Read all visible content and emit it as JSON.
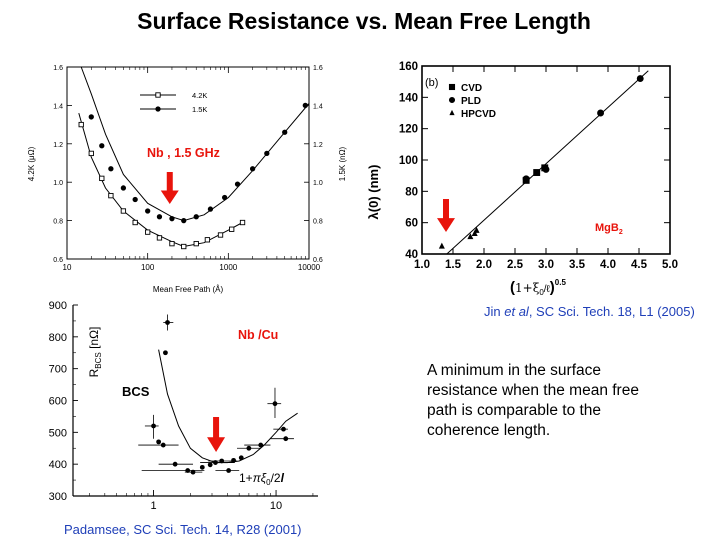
{
  "slide": {
    "title": "Surface Resistance vs. Mean Free Length",
    "summary": "A minimum in the surface resistance when the mean free path is comparable to the coherence length.",
    "citation_mgb2": {
      "prefix": "Jin ",
      "italic": "et al",
      "suffix": ", SC Sci. Tech. 18, L1 (2005)"
    },
    "citation_nbcu": "Padamsee, SC Sci. Tech. 14, R28 (2001)",
    "colors": {
      "highlight": "#e8140c",
      "citation": "#1f3fb8"
    }
  },
  "chart_data": [
    {
      "id": "nb-mfp",
      "type": "line",
      "annotation": "Nb , 1.5 GHz",
      "xlabel": "Mean  Free  Path  (Å)",
      "ylabel_left": "4.2K   (μΩ)",
      "ylabel_right": "1.5K   (nΩ)",
      "x_scale": "log",
      "xlim": [
        10,
        10000
      ],
      "ylim": [
        0.6,
        1.6
      ],
      "x_ticks": [
        10,
        100,
        1000,
        10000
      ],
      "x_tick_labels": [
        "10",
        "100",
        "1000",
        "10000"
      ],
      "y_ticks": [
        0.6,
        0.8,
        1.0,
        1.2,
        1.4,
        1.6
      ],
      "y_tick_labels": [
        "0.6",
        "0.8",
        "1.0",
        "1.2",
        "1.4",
        "1.6"
      ],
      "series": [
        {
          "name": "4.2K",
          "marker": "square",
          "x": [
            15,
            20,
            27,
            35,
            50,
            70,
            100,
            140,
            200,
            280,
            400,
            550,
            800,
            1100,
            1500
          ],
          "y": [
            1.3,
            1.15,
            1.02,
            0.93,
            0.85,
            0.79,
            0.74,
            0.71,
            0.68,
            0.665,
            0.68,
            0.7,
            0.725,
            0.755,
            0.79
          ]
        },
        {
          "name": "1.5K",
          "marker": "circle",
          "x": [
            20,
            27,
            35,
            50,
            70,
            100,
            140,
            200,
            280,
            400,
            600,
            900,
            1300,
            2000,
            3000,
            5000,
            9000
          ],
          "y": [
            1.34,
            1.19,
            1.07,
            0.97,
            0.91,
            0.85,
            0.82,
            0.81,
            0.8,
            0.82,
            0.86,
            0.92,
            0.99,
            1.07,
            1.15,
            1.26,
            1.4
          ]
        }
      ],
      "curve_upper": {
        "x": [
          15,
          20,
          30,
          50,
          100,
          200,
          280,
          500,
          1000,
          2000,
          5000,
          10000
        ],
        "y": [
          1.6,
          1.46,
          1.25,
          1.04,
          0.89,
          0.82,
          0.8,
          0.83,
          0.92,
          1.06,
          1.26,
          1.41
        ]
      },
      "curve_lower": {
        "x": [
          14,
          20,
          30,
          50,
          100,
          200,
          280,
          500,
          1000,
          1500
        ],
        "y": [
          1.36,
          1.13,
          0.97,
          0.85,
          0.75,
          0.69,
          0.665,
          0.685,
          0.75,
          0.79
        ]
      },
      "arrow_x": 250
    },
    {
      "id": "mgb2",
      "type": "scatter",
      "panel_label": "(b)",
      "annotation": {
        "text": "MgB",
        "sub": "2"
      },
      "ylabel": "λ(0) (nm)",
      "xlabel": {
        "open": "(",
        "base": "1+ξ",
        "sub": "0",
        "mid": "/ℓ",
        "close": ")",
        "sup": "0.5"
      },
      "xlim": [
        1.0,
        5.0
      ],
      "ylim": [
        40,
        160
      ],
      "x_ticks": [
        1.0,
        1.5,
        2.0,
        2.5,
        3.0,
        3.5,
        4.0,
        4.5,
        5.0
      ],
      "x_tick_labels": [
        "1.0",
        "1.5",
        "2.0",
        "2.5",
        "3.0",
        "3.5",
        "4.0",
        "4.5",
        "5.0"
      ],
      "y_ticks": [
        40,
        60,
        80,
        100,
        120,
        140,
        160
      ],
      "y_tick_labels": [
        "40",
        "60",
        "80",
        "100",
        "120",
        "140",
        "160"
      ],
      "legend": [
        "CVD",
        "PLD",
        "HPCVD"
      ],
      "series": [
        {
          "name": "CVD",
          "marker": "square",
          "x": [
            2.68,
            2.85,
            2.98
          ],
          "y": [
            87,
            92,
            95
          ]
        },
        {
          "name": "PLD",
          "marker": "circle",
          "x": [
            2.68,
            3.0,
            3.88,
            4.52
          ],
          "y": [
            88,
            94,
            130,
            152
          ]
        },
        {
          "name": "HPCVD",
          "marker": "triangle",
          "x": [
            1.32,
            1.78,
            1.85,
            1.88
          ],
          "y": [
            45,
            51,
            53,
            55
          ]
        }
      ],
      "fit_line": {
        "x": [
          1.4,
          4.65
        ],
        "y": [
          40,
          157
        ]
      },
      "arrow_x": 1.5
    },
    {
      "id": "nbcu",
      "type": "scatter",
      "annotation": "Nb /Cu",
      "curve_label": "BCS",
      "ylabel": {
        "base": "R",
        "sub": "BCS",
        "unit": " [nΩ]"
      },
      "xlabel": {
        "pre": "1+",
        "pi": "π",
        "xi": "ξ",
        "sub": "0",
        "post": "/2",
        "l": "l"
      },
      "x_scale": "log",
      "xlim": [
        0.22,
        22
      ],
      "ylim": [
        300,
        900
      ],
      "x_ticks": [
        1,
        10
      ],
      "x_tick_labels": [
        "1",
        "10"
      ],
      "y_ticks": [
        300,
        400,
        500,
        600,
        700,
        800,
        900
      ],
      "y_tick_labels": [
        "300",
        "400",
        "500",
        "600",
        "700",
        "800",
        "900"
      ],
      "points": [
        {
          "x": 1.3,
          "y": 845,
          "xerr": [
            1.2,
            1.45
          ],
          "yerr": [
            820,
            870
          ]
        },
        {
          "x": 1.25,
          "y": 750
        },
        {
          "x": 1.0,
          "y": 520,
          "xerr": [
            0.85,
            1.1
          ],
          "yerr": [
            480,
            555
          ]
        },
        {
          "x": 1.1,
          "y": 470
        },
        {
          "x": 1.2,
          "y": 460,
          "xerr": [
            0.75,
            1.6
          ]
        },
        {
          "x": 1.5,
          "y": 400,
          "xerr": [
            1.1,
            2.1
          ]
        },
        {
          "x": 1.9,
          "y": 380,
          "xerr": [
            0.8,
            2.6
          ]
        },
        {
          "x": 2.1,
          "y": 375,
          "xerr": [
            1.8,
            2.5
          ]
        },
        {
          "x": 2.5,
          "y": 390
        },
        {
          "x": 2.9,
          "y": 398
        },
        {
          "x": 3.2,
          "y": 405,
          "xerr": [
            2.4,
            4.6
          ]
        },
        {
          "x": 3.6,
          "y": 410,
          "xerr": [
            2.8,
            4.8
          ]
        },
        {
          "x": 4.5,
          "y": 412
        },
        {
          "x": 5.2,
          "y": 420
        },
        {
          "x": 4.1,
          "y": 380,
          "xerr": [
            3.2,
            5.0
          ]
        },
        {
          "x": 6.0,
          "y": 450,
          "xerr": [
            4.8,
            7.5
          ]
        },
        {
          "x": 7.5,
          "y": 460,
          "xerr": [
            5.5,
            9.0
          ]
        },
        {
          "x": 9.8,
          "y": 590,
          "xerr": [
            8.5,
            11.0
          ],
          "yerr": [
            545,
            640
          ]
        },
        {
          "x": 11.5,
          "y": 510,
          "xerr": [
            9.5,
            12.5
          ]
        },
        {
          "x": 12.0,
          "y": 480,
          "xerr": [
            9.0,
            14.0
          ]
        }
      ],
      "bcs_curve": {
        "x": [
          1.1,
          1.3,
          1.6,
          2.0,
          2.5,
          3.2,
          4.0,
          5.0,
          6.5,
          8.0,
          10.0,
          12.0,
          15.0
        ],
        "y": [
          760,
          620,
          520,
          450,
          420,
          405,
          405,
          410,
          430,
          460,
          500,
          535,
          560
        ]
      },
      "arrow_x": 3.3
    }
  ]
}
